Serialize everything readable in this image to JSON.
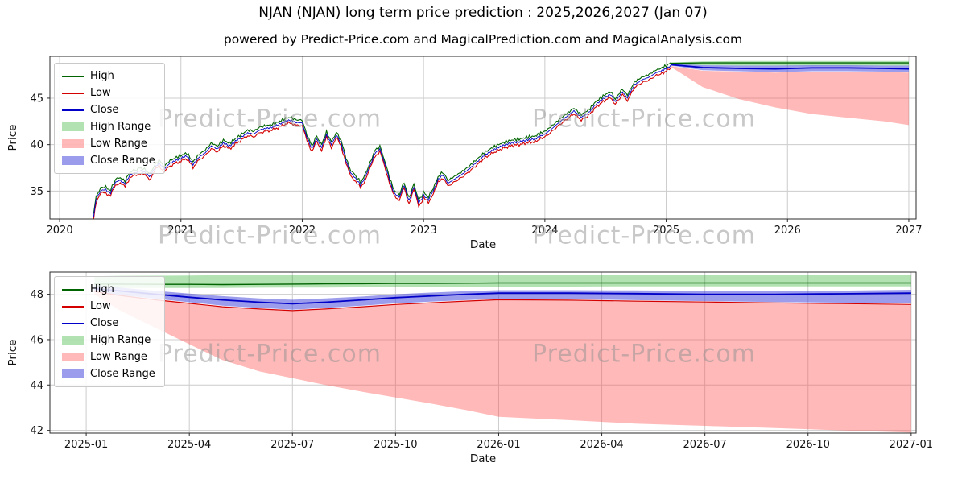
{
  "figure": {
    "title": "NJAN (NJAN) long term price prediction : 2025,2026,2027 (Jan 07)",
    "subtitle": "powered by Predict-Price.com and MagicalPrediction.com and MagicalAnalysis.com",
    "watermark": "Predict-Price.com"
  },
  "colors": {
    "high_line": "#006400",
    "low_line": "#d40000",
    "close_line": "#0000c8",
    "high_range": "rgba(0,160,0,0.30)",
    "low_range": "rgba(255,80,80,0.40)",
    "close_range": "rgba(75,75,220,0.55)",
    "grid": "#cccccc",
    "spine": "#2b2b2b",
    "watermark": "rgba(145,145,145,0.50)"
  },
  "legend": {
    "items": [
      {
        "label": "High",
        "type": "line",
        "color_key": "high_line"
      },
      {
        "label": "Low",
        "type": "line",
        "color_key": "low_line"
      },
      {
        "label": "Close",
        "type": "line",
        "color_key": "close_line"
      },
      {
        "label": "High Range",
        "type": "patch",
        "color_key": "high_range"
      },
      {
        "label": "Low Range",
        "type": "patch",
        "color_key": "low_range"
      },
      {
        "label": "Close Range",
        "type": "patch",
        "color_key": "close_range"
      }
    ]
  },
  "chart_data": [
    {
      "type": "line",
      "name": "history-and-forecast",
      "xlabel": "Date",
      "ylabel": "Price",
      "grid": true,
      "legend_position": "upper left",
      "xlim": [
        2019.92,
        2027.06
      ],
      "ylim": [
        32.0,
        49.5
      ],
      "xticks": [
        {
          "v": 2020,
          "label": "2020"
        },
        {
          "v": 2021,
          "label": "2021"
        },
        {
          "v": 2022,
          "label": "2022"
        },
        {
          "v": 2023,
          "label": "2023"
        },
        {
          "v": 2024,
          "label": "2024"
        },
        {
          "v": 2025,
          "label": "2025"
        },
        {
          "v": 2026,
          "label": "2026"
        },
        {
          "v": 2027,
          "label": "2027"
        }
      ],
      "yticks": [
        {
          "v": 35,
          "label": "35"
        },
        {
          "v": 40,
          "label": "40"
        },
        {
          "v": 45,
          "label": "45"
        }
      ],
      "history": {
        "spread": 0.3,
        "jitter": 0.13,
        "close_keypoints": [
          [
            2020.28,
            32.1
          ],
          [
            2020.3,
            34.2
          ],
          [
            2020.34,
            34.9
          ],
          [
            2020.38,
            35.2
          ],
          [
            2020.42,
            34.9
          ],
          [
            2020.46,
            35.8
          ],
          [
            2020.5,
            36.2
          ],
          [
            2020.54,
            35.9
          ],
          [
            2020.58,
            36.6
          ],
          [
            2020.62,
            37.0
          ],
          [
            2020.66,
            37.3
          ],
          [
            2020.7,
            36.9
          ],
          [
            2020.74,
            36.6
          ],
          [
            2020.78,
            37.5
          ],
          [
            2020.82,
            37.9
          ],
          [
            2020.86,
            37.4
          ],
          [
            2020.9,
            38.0
          ],
          [
            2020.95,
            38.2
          ],
          [
            2021.0,
            38.4
          ],
          [
            2021.05,
            38.7
          ],
          [
            2021.1,
            37.9
          ],
          [
            2021.15,
            38.8
          ],
          [
            2021.2,
            39.2
          ],
          [
            2021.25,
            39.8
          ],
          [
            2021.3,
            39.4
          ],
          [
            2021.35,
            40.1
          ],
          [
            2021.4,
            39.9
          ],
          [
            2021.45,
            40.5
          ],
          [
            2021.5,
            40.9
          ],
          [
            2021.55,
            41.2
          ],
          [
            2021.6,
            41.0
          ],
          [
            2021.65,
            41.5
          ],
          [
            2021.7,
            41.8
          ],
          [
            2021.75,
            42.0
          ],
          [
            2021.8,
            42.2
          ],
          [
            2021.85,
            42.4
          ],
          [
            2021.9,
            42.5
          ],
          [
            2021.95,
            42.3
          ],
          [
            2022.0,
            42.4
          ],
          [
            2022.04,
            40.8
          ],
          [
            2022.08,
            39.4
          ],
          [
            2022.12,
            40.7
          ],
          [
            2022.16,
            39.8
          ],
          [
            2022.2,
            40.9
          ],
          [
            2022.24,
            40.1
          ],
          [
            2022.28,
            41.1
          ],
          [
            2022.32,
            40.0
          ],
          [
            2022.36,
            38.4
          ],
          [
            2022.4,
            37.0
          ],
          [
            2022.44,
            36.2
          ],
          [
            2022.48,
            35.7
          ],
          [
            2022.52,
            36.6
          ],
          [
            2022.56,
            37.6
          ],
          [
            2022.6,
            39.2
          ],
          [
            2022.64,
            39.6
          ],
          [
            2022.68,
            37.8
          ],
          [
            2022.72,
            36.2
          ],
          [
            2022.76,
            34.8
          ],
          [
            2022.8,
            34.2
          ],
          [
            2022.84,
            35.7
          ],
          [
            2022.88,
            34.0
          ],
          [
            2022.92,
            35.3
          ],
          [
            2022.96,
            33.8
          ],
          [
            2023.0,
            34.6
          ],
          [
            2023.04,
            33.9
          ],
          [
            2023.08,
            35.1
          ],
          [
            2023.12,
            36.3
          ],
          [
            2023.16,
            36.6
          ],
          [
            2023.2,
            35.9
          ],
          [
            2023.26,
            36.4
          ],
          [
            2023.32,
            36.9
          ],
          [
            2023.38,
            37.5
          ],
          [
            2023.44,
            38.2
          ],
          [
            2023.5,
            38.9
          ],
          [
            2023.56,
            39.4
          ],
          [
            2023.62,
            39.8
          ],
          [
            2023.68,
            40.1
          ],
          [
            2023.74,
            40.3
          ],
          [
            2023.8,
            40.4
          ],
          [
            2023.86,
            40.6
          ],
          [
            2023.92,
            40.7
          ],
          [
            2024.0,
            41.0
          ],
          [
            2024.06,
            41.6
          ],
          [
            2024.12,
            42.3
          ],
          [
            2024.18,
            42.9
          ],
          [
            2024.24,
            43.5
          ],
          [
            2024.3,
            42.8
          ],
          [
            2024.36,
            43.3
          ],
          [
            2024.42,
            44.2
          ],
          [
            2024.48,
            44.8
          ],
          [
            2024.54,
            45.3
          ],
          [
            2024.58,
            44.7
          ],
          [
            2024.64,
            45.8
          ],
          [
            2024.68,
            45.1
          ],
          [
            2024.74,
            46.5
          ],
          [
            2024.8,
            47.0
          ],
          [
            2024.86,
            47.3
          ],
          [
            2024.92,
            47.8
          ],
          [
            2025.0,
            48.3
          ],
          [
            2025.04,
            48.6
          ]
        ]
      },
      "forecast": {
        "x": [
          2025.04,
          2025.3,
          2025.6,
          2025.9,
          2026.2,
          2026.5,
          2026.8,
          2027.0
        ],
        "high_top": [
          48.85,
          48.95,
          49.0,
          49.0,
          49.0,
          49.0,
          49.0,
          49.0
        ],
        "high_line": [
          48.75,
          48.8,
          48.8,
          48.8,
          48.8,
          48.8,
          48.8,
          48.8
        ],
        "high_bottom": [
          48.6,
          48.55,
          48.5,
          48.5,
          48.5,
          48.5,
          48.5,
          48.5
        ],
        "close_top": [
          48.7,
          48.55,
          48.5,
          48.5,
          48.55,
          48.55,
          48.5,
          48.5
        ],
        "close_line": [
          48.6,
          48.3,
          48.2,
          48.15,
          48.25,
          48.25,
          48.2,
          48.15
        ],
        "close_bottom": [
          48.5,
          48.0,
          47.9,
          47.8,
          47.9,
          47.9,
          47.85,
          47.8
        ],
        "low_top": [
          48.45,
          47.95,
          47.85,
          47.75,
          47.85,
          47.85,
          47.8,
          47.75
        ],
        "low_bottom": [
          48.35,
          46.2,
          44.9,
          44.0,
          43.3,
          42.9,
          42.5,
          42.1
        ]
      }
    },
    {
      "type": "line",
      "name": "forecast-detail",
      "xlabel": "Date",
      "ylabel": "Price",
      "grid": true,
      "legend_position": "upper left",
      "xlim": [
        2024.912,
        2027.012
      ],
      "ylim": [
        41.88,
        48.98
      ],
      "xticks": [
        {
          "v": 2025.0,
          "label": "2025-01"
        },
        {
          "v": 2025.25,
          "label": "2025-04"
        },
        {
          "v": 2025.5,
          "label": "2025-07"
        },
        {
          "v": 2025.75,
          "label": "2025-10"
        },
        {
          "v": 2026.0,
          "label": "2026-01"
        },
        {
          "v": 2026.25,
          "label": "2026-04"
        },
        {
          "v": 2026.5,
          "label": "2026-07"
        },
        {
          "v": 2026.75,
          "label": "2026-10"
        },
        {
          "v": 2027.0,
          "label": "2027-01"
        }
      ],
      "yticks": [
        {
          "v": 42,
          "label": "42"
        },
        {
          "v": 44,
          "label": "44"
        },
        {
          "v": 46,
          "label": "46"
        },
        {
          "v": 48,
          "label": "48"
        }
      ],
      "forecast": {
        "x": [
          2025.02,
          2025.08,
          2025.17,
          2025.25,
          2025.33,
          2025.42,
          2025.5,
          2025.58,
          2025.67,
          2025.75,
          2025.83,
          2025.92,
          2026.0,
          2026.17,
          2026.33,
          2026.5,
          2026.67,
          2026.83,
          2027.0
        ],
        "high_top": [
          48.8,
          48.81,
          48.82,
          48.83,
          48.84,
          48.85,
          48.85,
          48.85,
          48.85,
          48.85,
          48.85,
          48.85,
          48.85,
          48.86,
          48.86,
          48.86,
          48.86,
          48.86,
          48.86
        ],
        "high_line": [
          48.45,
          48.45,
          48.44,
          48.44,
          48.43,
          48.44,
          48.45,
          48.46,
          48.47,
          48.48,
          48.48,
          48.49,
          48.5,
          48.5,
          48.5,
          48.5,
          48.5,
          48.5,
          48.5
        ],
        "high_bottom": [
          48.28,
          48.28,
          48.28,
          48.28,
          48.28,
          48.29,
          48.3,
          48.3,
          48.31,
          48.32,
          48.32,
          48.33,
          48.34,
          48.34,
          48.35,
          48.35,
          48.35,
          48.35,
          48.35
        ],
        "close_top": [
          48.4,
          48.3,
          48.15,
          48.03,
          47.92,
          47.82,
          47.76,
          47.82,
          47.9,
          48.0,
          48.07,
          48.14,
          48.18,
          48.18,
          48.17,
          48.15,
          48.15,
          48.16,
          48.2
        ],
        "close_line": [
          48.25,
          48.15,
          48.0,
          47.87,
          47.75,
          47.65,
          47.58,
          47.65,
          47.75,
          47.85,
          47.92,
          48.0,
          48.05,
          48.05,
          48.03,
          48.0,
          48.0,
          48.02,
          48.05
        ],
        "close_bottom": [
          48.1,
          47.97,
          47.8,
          47.65,
          47.5,
          47.4,
          47.32,
          47.4,
          47.5,
          47.6,
          47.67,
          47.74,
          47.8,
          47.78,
          47.74,
          47.7,
          47.66,
          47.63,
          47.6
        ],
        "low_line": [
          48.12,
          47.95,
          47.75,
          47.6,
          47.45,
          47.35,
          47.28,
          47.35,
          47.45,
          47.55,
          47.62,
          47.7,
          47.76,
          47.74,
          47.7,
          47.66,
          47.62,
          47.59,
          47.55
        ],
        "low_top": [
          48.08,
          47.93,
          47.74,
          47.58,
          47.43,
          47.33,
          47.26,
          47.33,
          47.43,
          47.53,
          47.6,
          47.68,
          47.74,
          47.72,
          47.68,
          47.64,
          47.6,
          47.57,
          47.52
        ],
        "low_bottom": [
          48.0,
          47.3,
          46.5,
          45.8,
          45.1,
          44.6,
          44.3,
          44.0,
          43.7,
          43.45,
          43.2,
          42.9,
          42.6,
          42.45,
          42.3,
          42.2,
          42.1,
          42.0,
          41.9
        ]
      }
    }
  ]
}
